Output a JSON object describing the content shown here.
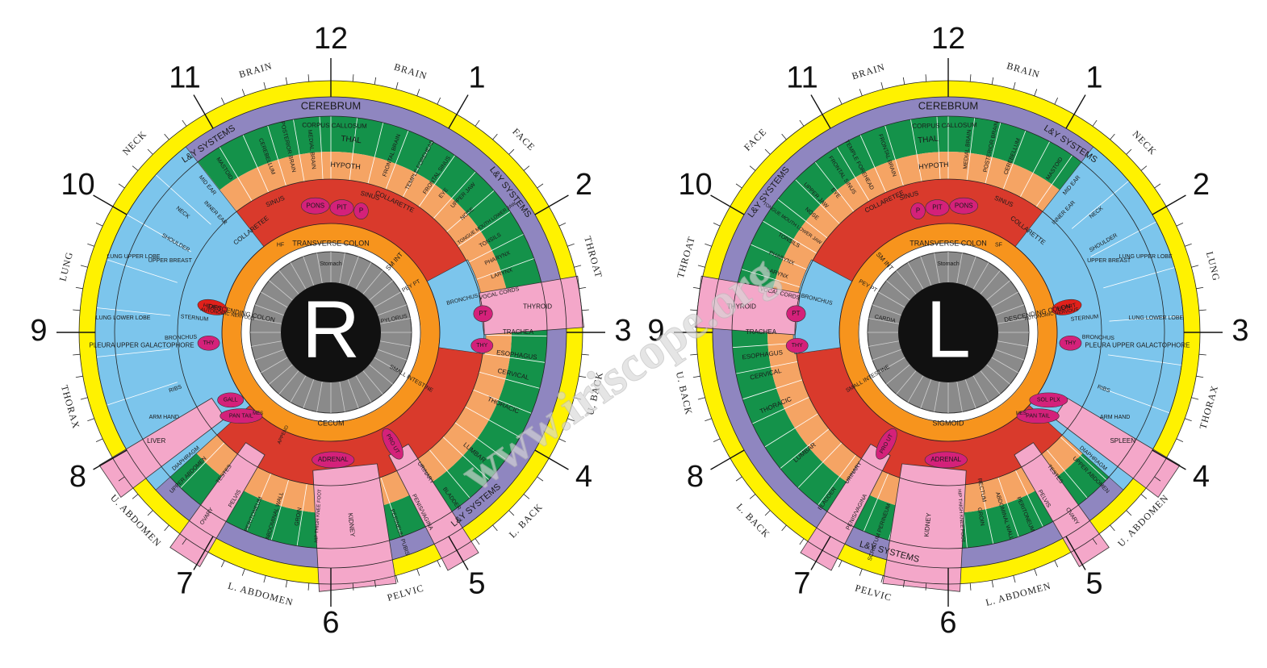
{
  "irises": [
    {
      "letter": "R",
      "clock": [
        "12",
        "1",
        "2",
        "3",
        "4",
        "5",
        "6",
        "7",
        "8",
        "9",
        "10",
        "11"
      ],
      "regions": [
        "BRAIN",
        "BRAIN",
        "FACE",
        "THROAT",
        "U. BACK",
        "L. BACK",
        "PELVIC",
        "L. ABDOMEN",
        "U. ABDOMEN",
        "THORAX",
        "LUNG",
        "NECK"
      ],
      "zones": [
        "CEREBRUM",
        "CORPUS CALLOSUM",
        "THAL",
        "HYPOTH",
        "MEDIAL BRAIN",
        "POSTERIOR BRAIN",
        "CEREBELLUM",
        "MASTOID",
        "MID EAR",
        "INNER EAR",
        "L&Y SYSTEMS",
        "SINUS",
        "NECK",
        "SHOULDER",
        "COLLARETEE",
        "COLLARETTE",
        "SINUS",
        "FRONTAL BRAIN",
        "TEMPLE FOREHEAD",
        "FRONTAL SINUS",
        "EYE",
        "UPPER JAW",
        "NOSE",
        "TONGUE MOUTH LOWER JAW",
        "TONSILS",
        "PHARYNX",
        "LARYNX",
        "VOCAL CORDS",
        "L&Y SYSTEMS",
        "THYROID",
        "TRACHEA",
        "ESOPHAGUS",
        "CERVICAL",
        "THORACIC",
        "LUMBAR",
        "L&Y SYSTEMS",
        "URINARY",
        "BLADDER",
        "PENIS/VAGINA",
        "PERINEUM PUBIS",
        "KIDNEY",
        "HIP THIGH KNEE FOOT",
        "GROIN",
        "ABDOMINAL WALL",
        "PERITONEUM",
        "PELVIS",
        "TESTES",
        "OVARY",
        "UPPER ABDOMEN",
        "DIAPHRAGM",
        "LIVER",
        "ARM HAND",
        "RIBS",
        "PLEURA UPPER GALACTOPHORE",
        "BRONCHUS",
        "STERNUM",
        "LUNG LOWER LOBE",
        "LUNG UPPER LOBE",
        "UPPER BREAST",
        "HEART",
        "THY",
        "GALL",
        "PAN TAIL",
        "PONS",
        "PIT",
        "P",
        "BRONCHUS",
        "PT",
        "THY",
        "PRO UT",
        "ADRENAL",
        "TRANSVERSE COLON",
        "DESCENDING COLON",
        "CECUM",
        "SM INT",
        "PEY PT",
        "PYLORUS",
        "Stomach",
        "AUTONOMIC NERVOUS",
        "SMALL INTESTINE",
        "HF",
        "APPEND",
        "MES"
      ]
    },
    {
      "letter": "L",
      "clock": [
        "12",
        "1",
        "2",
        "3",
        "4",
        "5",
        "6",
        "7",
        "8",
        "9",
        "10",
        "11"
      ],
      "regions": [
        "BRAIN",
        "BRAIN",
        "FACE",
        "THROAT",
        "U. BACK",
        "L. BACK",
        "PELVIC",
        "L. ABDOMEN",
        "U. ABDOMEN",
        "THORAX",
        "LUNG",
        "NECK"
      ],
      "zones": [
        "CEREBRUM",
        "CORPUS CALLOSUM",
        "THAL",
        "HYPOTH",
        "MEDIAL BRAIN",
        "POSTERIOR BRAIN",
        "CEREBELLUM",
        "MASTOID",
        "MID EAR",
        "INNER EAR",
        "L&Y SYSTEMS",
        "SINUS",
        "NECK",
        "SHOULDER",
        "COLLARETTE",
        "COLLARETEE",
        "SINUS",
        "FRONTAL BRAIN",
        "TEMPLE FOREHEAD",
        "FRONTAL SINUS",
        "EYE",
        "UPPER JAW",
        "NOSE",
        "TONGUE MOUTH LOWER JAW",
        "TONSILS",
        "PHARYNX",
        "LARYNX",
        "VOCAL CORDS",
        "L&Y SYSTEMS",
        "THYROID",
        "TRACHEA",
        "ESOPHAGUS",
        "CERVICAL",
        "THORACIC",
        "LUMBAR",
        "L&Y SYSTEMS",
        "URINARY",
        "BLADDER",
        "PENIS/VAGINA",
        "SCROTUM PERINEUM",
        "KIDNEY",
        "HIP THIGH KNEE FOOT",
        "GROIN",
        "ABDOMINAL WALL",
        "PERITONEUM",
        "PELVIS",
        "TESTES",
        "OVARY",
        "UPPER ABDOMEN",
        "DIAPHRAGM",
        "SPLEEN",
        "ARM HAND",
        "RIBS",
        "PLEURA UPPER GALACTOPHORE",
        "BRONCHUS",
        "STERNUM",
        "LUNG LOWER LOBE",
        "LUNG UPPER LOBE",
        "UPPER BREAST",
        "HEART",
        "THY",
        "SOL PLX",
        "PAN TAIL",
        "PONS",
        "PIT",
        "P",
        "BRONCHUS",
        "PT",
        "THY",
        "PRO UT",
        "ADRENAL",
        "TRANSVERSE COLON",
        "DESCENDING COLON",
        "SIGMOID",
        "SM INT",
        "PEY PT",
        "CARDIA",
        "Stomach",
        "AUTONOMIC NERVOUS",
        "SMALL INTESTINE",
        "SF",
        "RECTUM",
        "MES"
      ]
    }
  ],
  "watermark": "www.iriscope.org"
}
